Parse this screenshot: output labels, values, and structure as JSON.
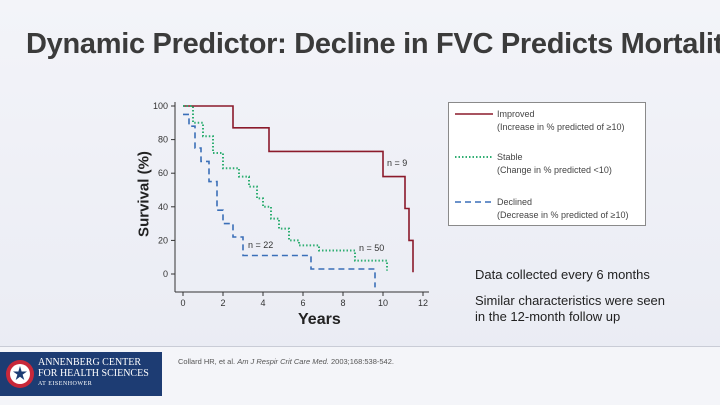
{
  "slide": {
    "title": "Dynamic Predictor: Decline in FVC Predicts Mortality",
    "notes": [
      "Data collected  every 6 months",
      "Similar characteristics were seen",
      "in the 12-month follow up"
    ],
    "citation_prefix": "Collard HR, et al.",
    "citation_journal": "Am J Respir Crit Care Med.",
    "citation_suffix": "2003;168:538-542.",
    "logo_line1": "ANNENBERG CENTER",
    "logo_line2": "FOR HEALTH SCIENCES",
    "logo_line3": "AT EISENHOWER",
    "colors": {
      "improved": "#8b1a2b",
      "stable": "#2fae72",
      "declined": "#3a6fb8",
      "logo_bg": "#1d3c73"
    }
  },
  "chart_data": {
    "type": "line",
    "xlabel": "Years",
    "ylabel": "Survival (%)",
    "xlim": [
      0,
      12
    ],
    "ylim": [
      0,
      100
    ],
    "xticks": [
      0,
      2,
      4,
      6,
      8,
      10,
      12
    ],
    "yticks": [
      0,
      20,
      40,
      60,
      80,
      100
    ],
    "series": [
      {
        "name": "Improved",
        "desc": "(Increase in % predicted of ≥10)",
        "style": "solid",
        "n_label": "n = 9",
        "x": [
          0,
          2.5,
          2.5,
          4.3,
          4.3,
          10.0,
          10.0,
          11.1,
          11.1,
          11.3,
          11.3,
          11.5,
          11.5
        ],
        "y": [
          100,
          100,
          87,
          87,
          73,
          73,
          58,
          58,
          39,
          39,
          20,
          20,
          1
        ]
      },
      {
        "name": "Stable",
        "desc": "(Change in % predicted <10)",
        "style": "dotted",
        "n_label": "n = 50",
        "x": [
          0,
          0.5,
          0.5,
          1.0,
          1.0,
          1.5,
          1.5,
          2.0,
          2.0,
          2.8,
          2.8,
          3.3,
          3.3,
          3.7,
          3.7,
          4.0,
          4.0,
          4.4,
          4.4,
          4.8,
          4.8,
          5.3,
          5.3,
          5.8,
          5.8,
          6.8,
          6.8,
          8.6,
          8.6,
          10.2,
          10.2
        ],
        "y": [
          100,
          100,
          90,
          90,
          82,
          82,
          72,
          72,
          63,
          63,
          58,
          58,
          52,
          52,
          45,
          45,
          40,
          40,
          33,
          33,
          27,
          27,
          20,
          20,
          17,
          17,
          14,
          14,
          8,
          8,
          2
        ]
      },
      {
        "name": "Declined",
        "desc": "(Decrease in % predicted of ≥10)",
        "style": "dashed",
        "n_label": "n = 22",
        "x": [
          0,
          0.3,
          0.3,
          0.6,
          0.6,
          0.9,
          0.9,
          1.3,
          1.3,
          1.7,
          1.7,
          2.0,
          2.0,
          2.5,
          2.5,
          3.0,
          3.0,
          6.4,
          6.4,
          9.6,
          9.6
        ],
        "y": [
          95,
          95,
          88,
          88,
          75,
          75,
          67,
          67,
          55,
          55,
          38,
          38,
          30,
          30,
          22,
          22,
          11,
          11,
          3,
          3,
          -8
        ]
      }
    ]
  }
}
